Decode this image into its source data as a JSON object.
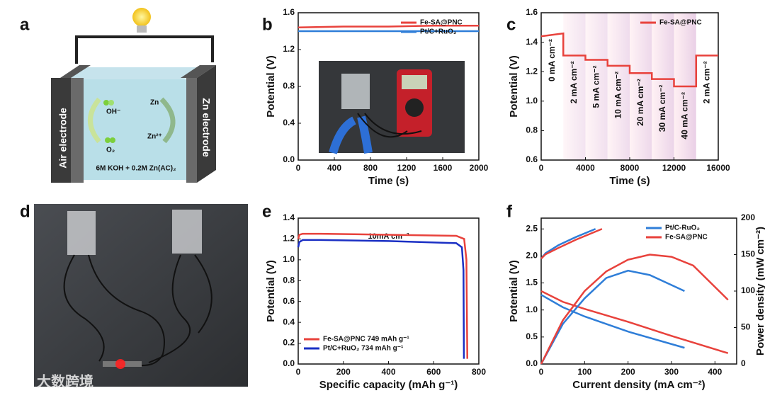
{
  "panel_labels": [
    "a",
    "b",
    "c",
    "d",
    "e",
    "f"
  ],
  "diagram": {
    "left_electrode": "Air electrode",
    "right_electrode": "Zn electrode",
    "species_oh": "OH⁻",
    "species_o2": "O₂",
    "species_zn": "Zn",
    "species_zn2": "Zn²⁺",
    "electrolyte": "6M KOH + 0.2M Zn(AC)₂"
  },
  "watermark": "大数跨境",
  "chart_data": [
    {
      "type": "line",
      "xlabel": "Time (s)",
      "ylabel": "Potential (V)",
      "xlim": [
        0,
        2000
      ],
      "ylim": [
        0,
        1.6
      ],
      "xticks": [
        0,
        400,
        800,
        1200,
        1600,
        2000
      ],
      "yticks": [
        {
          "value": 0,
          "label": "0.0"
        },
        0.4,
        0.8,
        1.2,
        1.6
      ],
      "legend": "upper right",
      "series": [
        {
          "name": "Fe-SA@PNC",
          "color": "#e8423c",
          "x": [
            0,
            500,
            1000,
            1500,
            2000
          ],
          "values": [
            1.44,
            1.45,
            1.45,
            1.46,
            1.46
          ]
        },
        {
          "name": "Pt/C+RuO₂",
          "color": "#2f7ed8",
          "x": [
            0,
            500,
            1000,
            1500,
            2000
          ],
          "values": [
            1.4,
            1.4,
            1.4,
            1.4,
            1.4
          ]
        }
      ]
    },
    {
      "type": "line",
      "xlabel": "Time (s)",
      "ylabel": "Potential (V)",
      "xlim": [
        0,
        16000
      ],
      "ylim": [
        0.6,
        1.6
      ],
      "xticks": [
        0,
        4000,
        8000,
        12000,
        16000
      ],
      "yticks": [
        0.6,
        0.8,
        {
          "value": 1,
          "label": "1.0"
        },
        1.2,
        1.4,
        1.6
      ],
      "legend": "upper right",
      "band_labels": [
        "0 mA cm⁻²",
        "2 mA cm⁻²",
        "5 mA cm⁻²",
        "10 mA cm⁻²",
        "20 mA cm⁻²",
        "30 mA cm⁻²",
        "40 mA cm⁻²",
        "2 mA cm⁻²"
      ],
      "series": [
        {
          "name": "Fe-SA@PNC",
          "color": "#e8423c",
          "x": [
            0,
            2000,
            2000,
            4000,
            4000,
            6000,
            6000,
            8000,
            8000,
            10000,
            10000,
            12000,
            12000,
            14000,
            14000,
            16000
          ],
          "values": [
            1.44,
            1.46,
            1.31,
            1.31,
            1.28,
            1.28,
            1.24,
            1.24,
            1.19,
            1.19,
            1.15,
            1.15,
            1.1,
            1.1,
            1.31,
            1.31
          ]
        }
      ]
    },
    {
      "type": "line",
      "xlabel": "Specific capacity (mAh g⁻¹)",
      "ylabel": "Potential (V)",
      "xlim": [
        0,
        800
      ],
      "ylim": [
        0,
        1.4
      ],
      "xticks": [
        0,
        200,
        400,
        600,
        800
      ],
      "yticks": [
        {
          "value": 0,
          "label": "0.0"
        },
        0.2,
        0.4,
        0.6,
        0.8,
        {
          "value": 1,
          "label": "1.0"
        },
        1.2,
        1.4
      ],
      "annotation": "10mA cm⁻²",
      "legend": "lower left",
      "series": [
        {
          "name": "Fe-SA@PNC   749 mAh g⁻¹",
          "color": "#e8423c",
          "x": [
            0,
            5,
            20,
            100,
            400,
            700,
            735,
            745,
            749
          ],
          "values": [
            1.2,
            1.24,
            1.25,
            1.25,
            1.24,
            1.23,
            1.2,
            1.0,
            0.05
          ]
        },
        {
          "name": "Pt/C+RuO₂   734 mAh g⁻¹",
          "color": "#1a2fc4",
          "x": [
            0,
            5,
            20,
            100,
            400,
            700,
            725,
            732,
            734
          ],
          "values": [
            1.12,
            1.17,
            1.19,
            1.19,
            1.18,
            1.16,
            1.12,
            0.9,
            0.05
          ]
        }
      ]
    },
    {
      "type": "line",
      "xlabel": "Current density (mA cm⁻²)",
      "ylabel": "Potential (V)",
      "y2label": "Power density (mW cm⁻²)",
      "xlim": [
        0,
        450
      ],
      "ylim": [
        0,
        2.7
      ],
      "y2lim": [
        0,
        200
      ],
      "xticks": [
        0,
        100,
        200,
        300,
        400
      ],
      "yticks": [
        {
          "value": 0,
          "label": "0.0"
        },
        0.5,
        {
          "value": 1,
          "label": "1.0"
        },
        1.5,
        {
          "value": 2,
          "label": "2.0"
        },
        2.5
      ],
      "y2ticks": [
        0,
        50,
        100,
        150,
        200
      ],
      "legend": "upper right",
      "series": [
        {
          "color": "#2f7ed8",
          "x": [
            0,
            10,
            40,
            80,
            125
          ],
          "values": [
            1.95,
            2.05,
            2.2,
            2.35,
            2.5
          ]
        },
        {
          "color": "#e8423c",
          "x": [
            0,
            10,
            40,
            80,
            140
          ],
          "values": [
            1.95,
            2.03,
            2.15,
            2.3,
            2.5
          ]
        },
        {
          "color": "#2f7ed8",
          "x": [
            0,
            50,
            100,
            200,
            330
          ],
          "values": [
            1.28,
            1.05,
            0.88,
            0.6,
            0.3
          ]
        },
        {
          "color": "#e8423c",
          "x": [
            0,
            50,
            100,
            200,
            300,
            430
          ],
          "values": [
            1.35,
            1.15,
            1.02,
            0.78,
            0.52,
            0.2
          ]
        },
        {
          "name": "Pt/C-RuO₂",
          "color": "#2f7ed8",
          "axis": "y2",
          "x": [
            0,
            50,
            100,
            150,
            200,
            250,
            330
          ],
          "values": [
            0,
            55,
            90,
            118,
            128,
            122,
            100
          ]
        },
        {
          "name": "Fe-SA@PNC",
          "color": "#e8423c",
          "axis": "y2",
          "x": [
            0,
            50,
            100,
            150,
            200,
            250,
            300,
            350,
            430
          ],
          "values": [
            0,
            60,
            100,
            127,
            143,
            150,
            147,
            135,
            88
          ]
        }
      ]
    }
  ]
}
